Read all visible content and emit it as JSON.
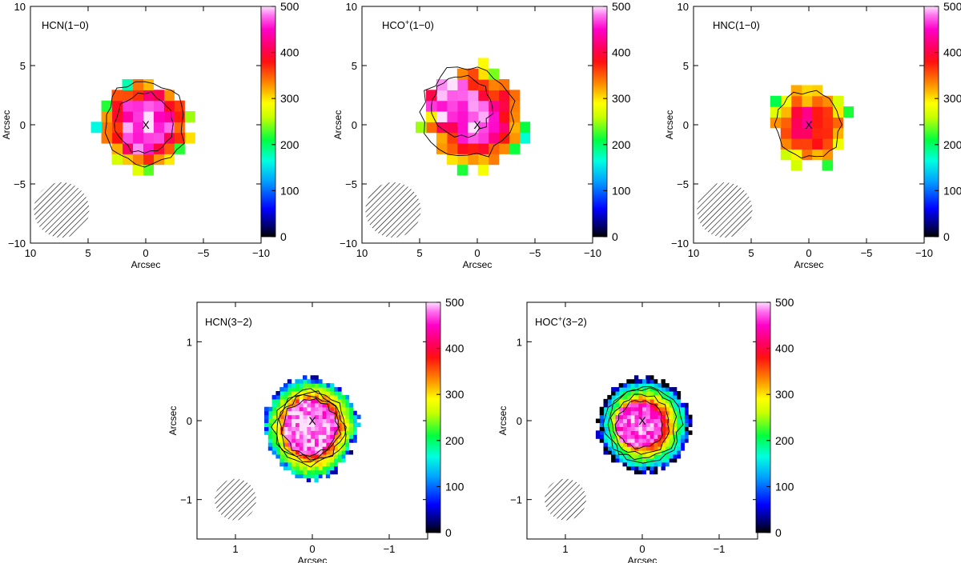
{
  "chart_data": [
    {
      "type": "heatmap",
      "title": "HCN(1−0)",
      "title_parts": [
        {
          "text": "HCN(1−0)",
          "sup": false
        }
      ],
      "xlabel": "Arcsec",
      "ylabel": "Arcsec",
      "xlim": [
        10,
        -10
      ],
      "ylim": [
        -10,
        10
      ],
      "xticks": [
        10,
        5,
        0,
        -5,
        -10
      ],
      "xtick_labels": [
        "10",
        "5",
        "0",
        "−5",
        "−10"
      ],
      "yticks": [
        -10,
        -5,
        0,
        5,
        10
      ],
      "ytick_labels": [
        "−10",
        "−5",
        "0",
        "5",
        "10"
      ],
      "colorbar": {
        "min": 0,
        "max": 500,
        "ticks": [
          0,
          100,
          200,
          300,
          400,
          500
        ],
        "tick_labels": [
          "0",
          "100",
          "200",
          "300",
          "400",
          "500"
        ]
      },
      "grid_step": 0.9,
      "emission": {
        "center": [
          0.1,
          0.1
        ],
        "radius": 3.9,
        "core_value": 455,
        "core_radius": 2.3,
        "edge_value": 330,
        "noise": 60
      },
      "contour_levels": [
        400,
        300
      ],
      "marker": {
        "x": 0,
        "y": 0,
        "label": "X"
      },
      "beam": {
        "x": 7.3,
        "y": -7.2,
        "radius": 2.4
      }
    },
    {
      "type": "heatmap",
      "title": "HCO+(1−0)",
      "title_parts": [
        {
          "text": "HCO",
          "sup": false
        },
        {
          "text": "+",
          "sup": true
        },
        {
          "text": "(1−0)",
          "sup": false
        }
      ],
      "xlabel": "Arcsec",
      "ylabel": "Arcsec",
      "xlim": [
        10,
        -10
      ],
      "ylim": [
        -10,
        10
      ],
      "xticks": [
        10,
        5,
        0,
        -5,
        -10
      ],
      "xtick_labels": [
        "10",
        "5",
        "0",
        "−5",
        "−10"
      ],
      "yticks": [
        -10,
        -5,
        0,
        5,
        10
      ],
      "ytick_labels": [
        "−10",
        "−5",
        "0",
        "5",
        "10"
      ],
      "colorbar": {
        "min": 0,
        "max": 500,
        "ticks": [
          0,
          100,
          200,
          300,
          400,
          500
        ],
        "tick_labels": [
          "0",
          "100",
          "200",
          "300",
          "400",
          "500"
        ]
      },
      "grid_step": 0.9,
      "emission": {
        "center": [
          0.3,
          0.6
        ],
        "radius": 4.4,
        "core_value": 470,
        "core_radius": 2.0,
        "core_offset": [
          1.8,
          1.6
        ],
        "edge_value": 320,
        "noise": 70
      },
      "contour_levels": [
        400,
        300
      ],
      "marker": {
        "x": 0,
        "y": 0,
        "label": "X"
      },
      "beam": {
        "x": 7.3,
        "y": -7.2,
        "radius": 2.4
      }
    },
    {
      "type": "heatmap",
      "title": "HNC(1−0)",
      "title_parts": [
        {
          "text": "HNC(1−0)",
          "sup": false
        }
      ],
      "xlabel": "Arcsec",
      "ylabel": "Arcsec",
      "xlim": [
        10,
        -10
      ],
      "ylim": [
        -10,
        10
      ],
      "xticks": [
        10,
        5,
        0,
        -5,
        -10
      ],
      "xtick_labels": [
        "10",
        "5",
        "0",
        "−5",
        "−10"
      ],
      "yticks": [
        -10,
        -5,
        0,
        5,
        10
      ],
      "ytick_labels": [
        "−10",
        "−5",
        "0",
        "5",
        "10"
      ],
      "colorbar": {
        "min": 0,
        "max": 500,
        "ticks": [
          0,
          100,
          200,
          300,
          400,
          500
        ],
        "tick_labels": [
          "0",
          "100",
          "200",
          "300",
          "400",
          "500"
        ]
      },
      "grid_step": 0.9,
      "emission": {
        "center": [
          0,
          0
        ],
        "radius": 3.4,
        "core_value": 390,
        "core_radius": 1.6,
        "edge_value": 300,
        "noise": 60
      },
      "contour_levels": [
        300
      ],
      "marker": {
        "x": 0,
        "y": 0,
        "label": "X"
      },
      "beam": {
        "x": 7.3,
        "y": -7.2,
        "radius": 2.4
      }
    },
    {
      "type": "heatmap",
      "title": "HCN(3−2)",
      "title_parts": [
        {
          "text": "HCN(3−2)",
          "sup": false
        }
      ],
      "xlabel": "Arcsec",
      "ylabel": "Arcsec",
      "xlim": [
        1.5,
        -1.5
      ],
      "ylim": [
        -1.5,
        1.5
      ],
      "xticks": [
        1,
        0,
        -1
      ],
      "xtick_labels": [
        "1",
        "0",
        "−1"
      ],
      "yticks": [
        -1,
        0,
        1
      ],
      "ytick_labels": [
        "−1",
        "0",
        "1"
      ],
      "colorbar": {
        "min": 0,
        "max": 500,
        "ticks": [
          0,
          100,
          200,
          300,
          400,
          500
        ],
        "tick_labels": [
          "0",
          "100",
          "200",
          "300",
          "400",
          "500"
        ]
      },
      "grid_step": 0.05,
      "emission": {
        "center": [
          0.02,
          -0.08
        ],
        "radius": 0.62,
        "core_value": 470,
        "core_radius": 0.35,
        "core_offset": [
          0.02,
          0.0
        ],
        "edge_value": 200,
        "noise": 60,
        "taper": true
      },
      "contour_levels": [
        400,
        350,
        300,
        250
      ],
      "marker": {
        "x": 0,
        "y": 0,
        "label": "X"
      },
      "beam": {
        "x": 1.0,
        "y": -1.0,
        "radius": 0.27
      }
    },
    {
      "type": "heatmap",
      "title": "HOC+(3−2)",
      "title_parts": [
        {
          "text": "HOC",
          "sup": false
        },
        {
          "text": "+",
          "sup": true
        },
        {
          "text": "(3−2)",
          "sup": false
        }
      ],
      "xlabel": "Arcsec",
      "ylabel": "Arcsec",
      "xlim": [
        1.5,
        -1.5
      ],
      "ylim": [
        -1.5,
        1.5
      ],
      "xticks": [
        1,
        0,
        -1
      ],
      "xtick_labels": [
        "1",
        "0",
        "−1"
      ],
      "yticks": [
        -1,
        0,
        1
      ],
      "ytick_labels": [
        "−1",
        "0",
        "1"
      ],
      "colorbar": {
        "min": 0,
        "max": 500,
        "ticks": [
          0,
          100,
          200,
          300,
          400,
          500
        ],
        "tick_labels": [
          "0",
          "100",
          "200",
          "300",
          "400",
          "500"
        ]
      },
      "grid_step": 0.05,
      "emission": {
        "center": [
          -0.02,
          -0.05
        ],
        "radius": 0.6,
        "core_value": 460,
        "core_radius": 0.3,
        "core_offset": [
          0.08,
          0.0
        ],
        "edge_value": 140,
        "noise": 60
      },
      "contour_levels": [
        400,
        300,
        200,
        150
      ],
      "marker": {
        "x": 0,
        "y": 0,
        "label": "X"
      },
      "beam": {
        "x": 1.0,
        "y": -1.0,
        "radius": 0.27
      }
    }
  ]
}
